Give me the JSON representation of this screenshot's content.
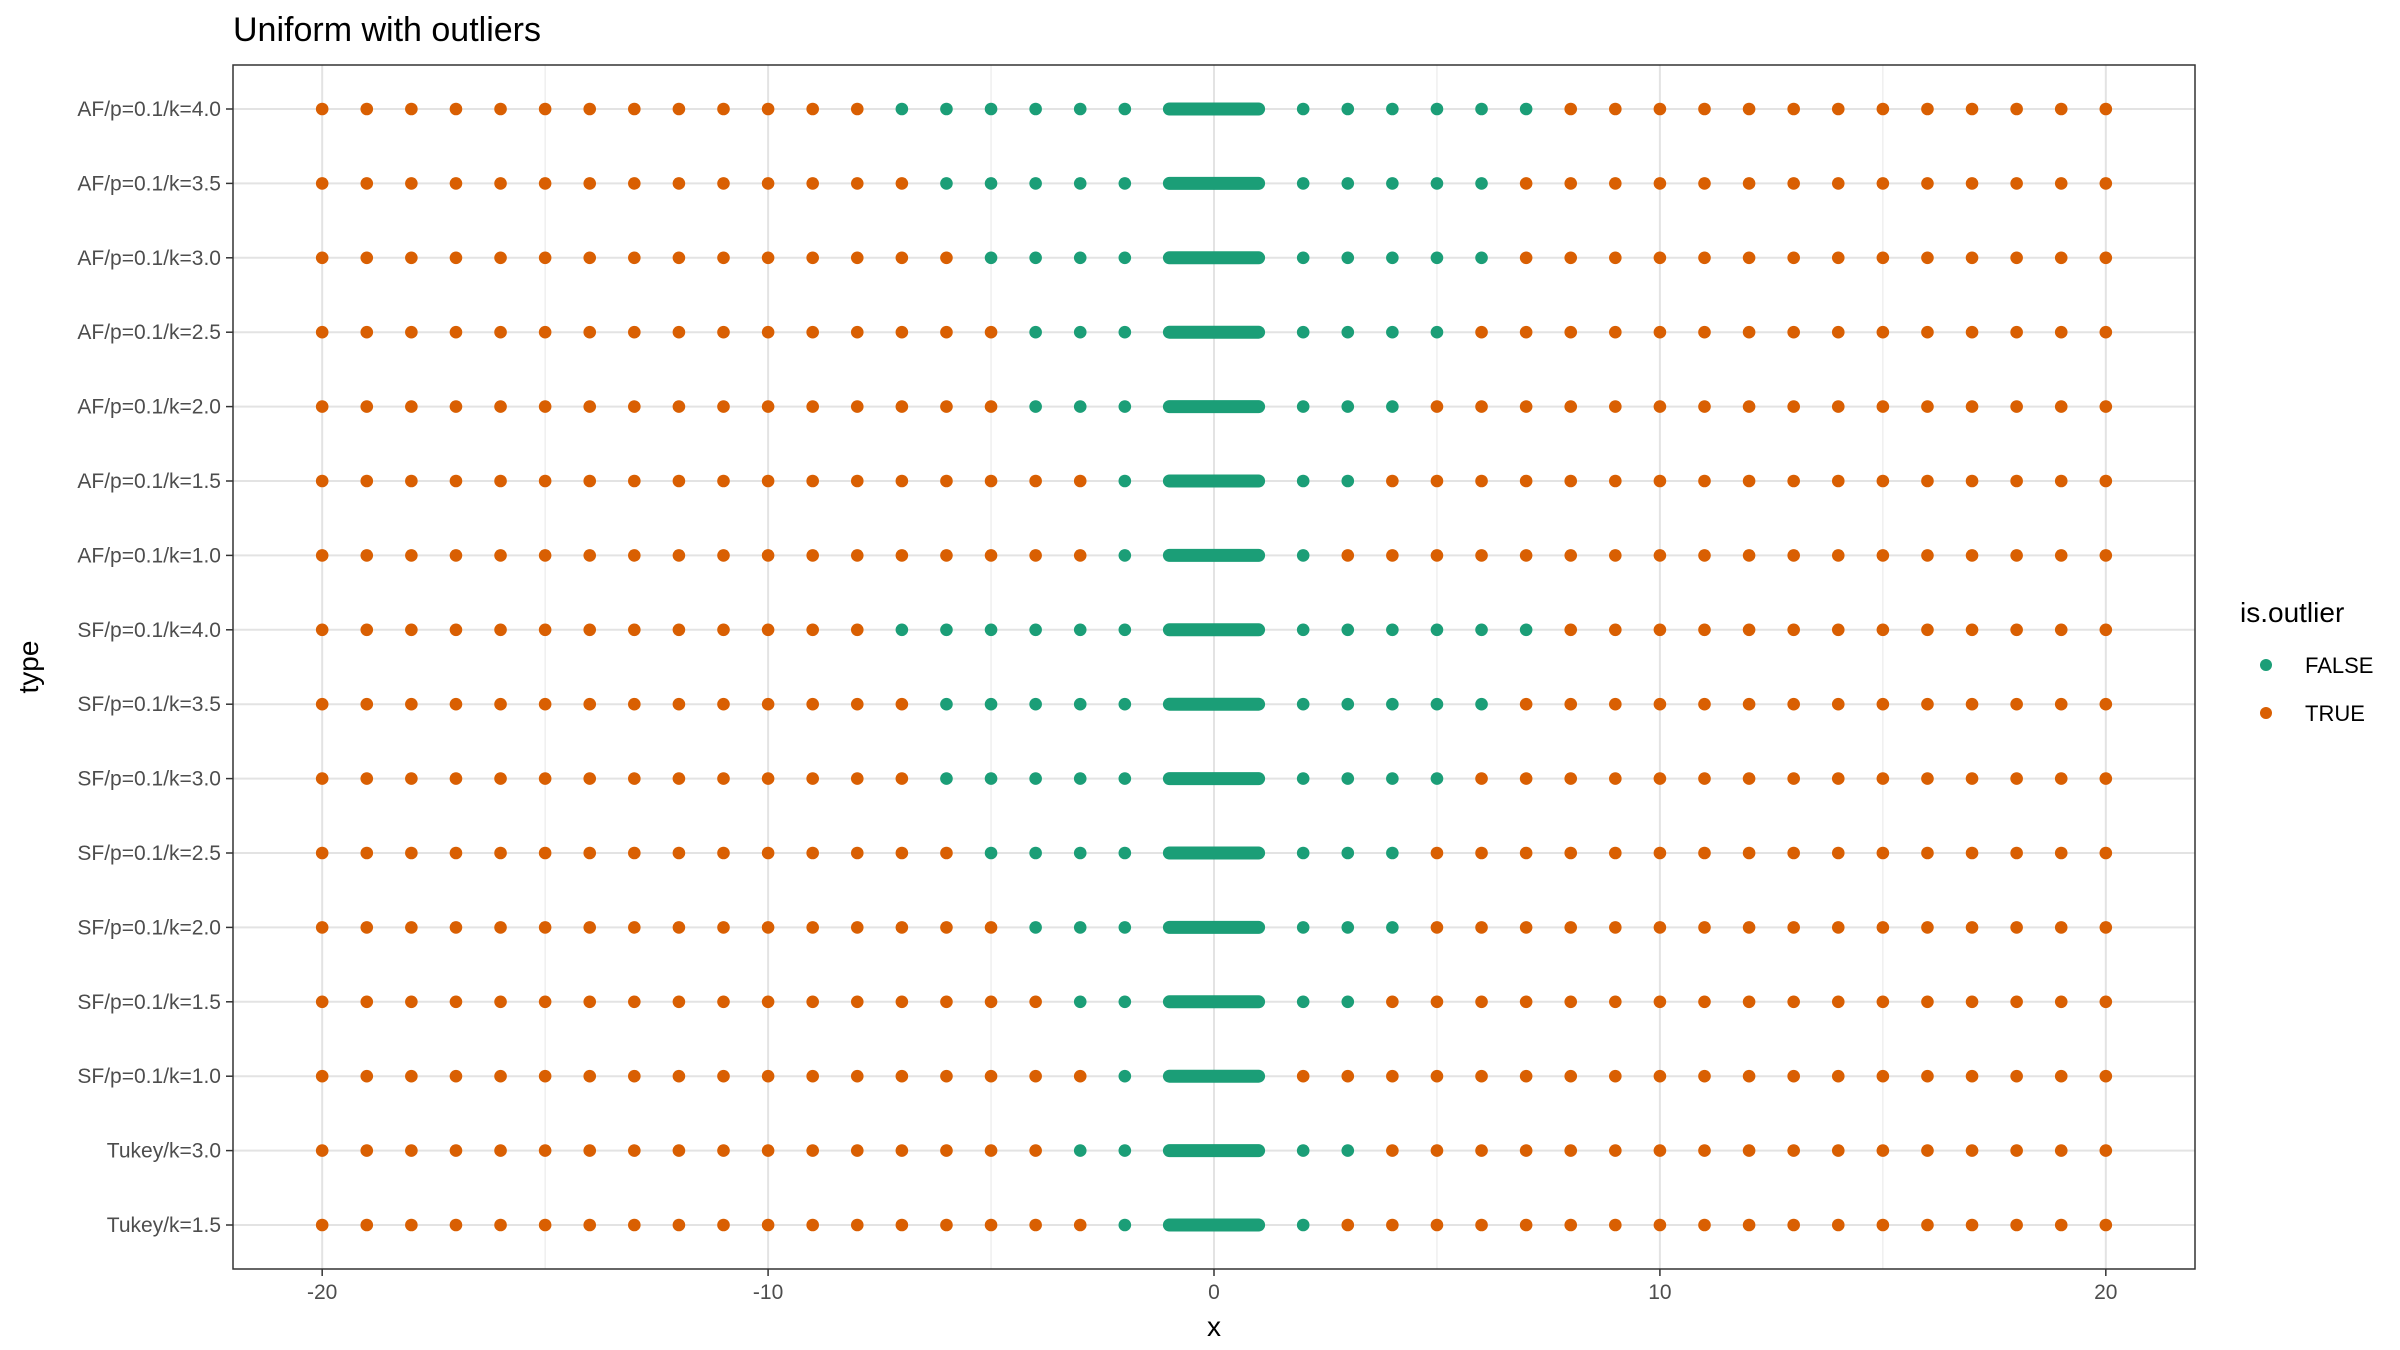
{
  "chart_data": {
    "type": "scatter",
    "title": "Uniform with outliers",
    "xlabel": "x",
    "ylabel": "type",
    "xlim": [
      -22,
      22
    ],
    "x_ticks": [
      -20,
      -10,
      0,
      10,
      20
    ],
    "x_tick_labels": [
      "-20",
      "-10",
      "0",
      "10",
      "20"
    ],
    "grid": true,
    "legend": {
      "title": "is.outlier",
      "placement": "right",
      "entries": [
        {
          "label": "FALSE",
          "color": "#1b9e77"
        },
        {
          "label": "TRUE",
          "color": "#d95f02"
        }
      ]
    },
    "categories": [
      "Tukey/k=1.5",
      "Tukey/k=3.0",
      "SF/p=0.1/k=1.0",
      "SF/p=0.1/k=1.5",
      "SF/p=0.1/k=2.0",
      "SF/p=0.1/k=2.5",
      "SF/p=0.1/k=3.0",
      "SF/p=0.1/k=3.5",
      "SF/p=0.1/k=4.0",
      "AF/p=0.1/k=1.0",
      "AF/p=0.1/k=1.5",
      "AF/p=0.1/k=2.0",
      "AF/p=0.1/k=2.5",
      "AF/p=0.1/k=3.0",
      "AF/p=0.1/k=3.5",
      "AF/p=0.1/k=4.0"
    ],
    "data_description": "Uniform values densely spaced from -1 to 1 (non-outliers) plus integer points from -20 to 20. Points within (-limit, +limit) for each type are FALSE; others TRUE.",
    "uniform_range": [
      -1,
      1
    ],
    "outlier_points": [
      -20,
      -19,
      -18,
      -17,
      -16,
      -15,
      -14,
      -13,
      -12,
      -11,
      -10,
      -9,
      -8,
      -7,
      -6,
      -5,
      -4,
      -3,
      -2,
      2,
      3,
      4,
      5,
      6,
      7,
      8,
      9,
      10,
      11,
      12,
      13,
      14,
      15,
      16,
      17,
      18,
      19,
      20
    ],
    "series": [
      {
        "type": "Tukey/k=1.5",
        "false_range": [
          -2,
          2
        ]
      },
      {
        "type": "Tukey/k=3.0",
        "false_range": [
          -3,
          3
        ]
      },
      {
        "type": "SF/p=0.1/k=1.0",
        "false_range": [
          -2,
          1
        ]
      },
      {
        "type": "SF/p=0.1/k=1.5",
        "false_range": [
          -3,
          3
        ]
      },
      {
        "type": "SF/p=0.1/k=2.0",
        "false_range": [
          -4,
          4
        ]
      },
      {
        "type": "SF/p=0.1/k=2.5",
        "false_range": [
          -5,
          4
        ]
      },
      {
        "type": "SF/p=0.1/k=3.0",
        "false_range": [
          -6,
          5
        ]
      },
      {
        "type": "SF/p=0.1/k=3.5",
        "false_range": [
          -6,
          6
        ]
      },
      {
        "type": "SF/p=0.1/k=4.0",
        "false_range": [
          -7,
          7
        ]
      },
      {
        "type": "AF/p=0.1/k=1.0",
        "false_range": [
          -2,
          2
        ]
      },
      {
        "type": "AF/p=0.1/k=1.5",
        "false_range": [
          -2,
          3
        ]
      },
      {
        "type": "AF/p=0.1/k=2.0",
        "false_range": [
          -4,
          4
        ]
      },
      {
        "type": "AF/p=0.1/k=2.5",
        "false_range": [
          -4,
          5
        ]
      },
      {
        "type": "AF/p=0.1/k=3.0",
        "false_range": [
          -5,
          6
        ]
      },
      {
        "type": "AF/p=0.1/k=3.5",
        "false_range": [
          -6,
          6
        ]
      },
      {
        "type": "AF/p=0.1/k=4.0",
        "false_range": [
          -7,
          7
        ]
      }
    ]
  }
}
